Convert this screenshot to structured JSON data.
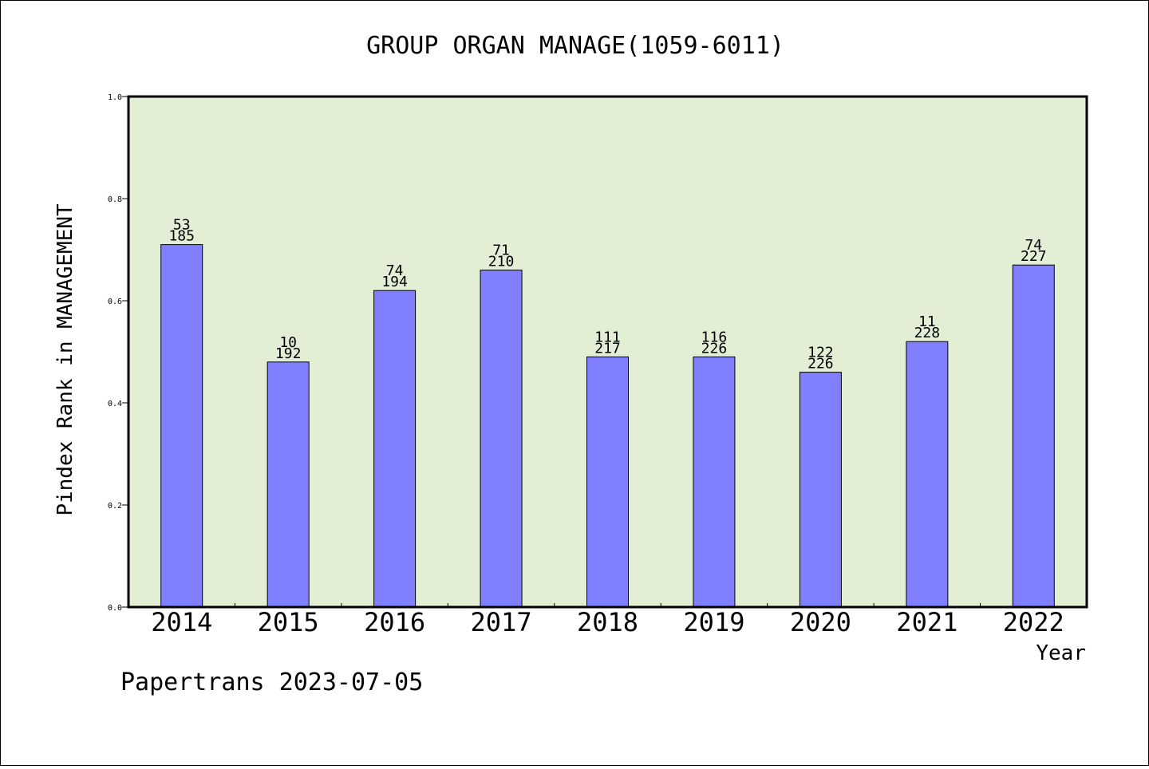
{
  "chart_data": {
    "type": "bar",
    "title": "GROUP ORGAN MANAGE(1059-6011)",
    "xlabel": "Year",
    "ylabel": "Pindex Rank in MANAGEMENT",
    "categories": [
      "2014",
      "2015",
      "2016",
      "2017",
      "2018",
      "2019",
      "2020",
      "2021",
      "2022"
    ],
    "values": [
      0.71,
      0.48,
      0.62,
      0.66,
      0.49,
      0.49,
      0.46,
      0.52,
      0.67
    ],
    "rank_labels": [
      "53",
      "10",
      "74",
      "71",
      "111",
      "116",
      "122",
      "11",
      "74"
    ],
    "total_labels": [
      "185",
      "192",
      "194",
      "210",
      "217",
      "226",
      "226",
      "228",
      "227"
    ],
    "ylim": [
      0,
      1.0
    ],
    "yticks": [
      "0.0",
      "0.2",
      "0.4",
      "0.6",
      "0.8",
      "1.0"
    ],
    "grid": false,
    "colors": {
      "plot_background": "#e2efd5",
      "bar_fill": "#8080ff",
      "bar_stroke": "#000000"
    }
  },
  "footer": {
    "credit": "Papertrans 2023-07-05"
  }
}
